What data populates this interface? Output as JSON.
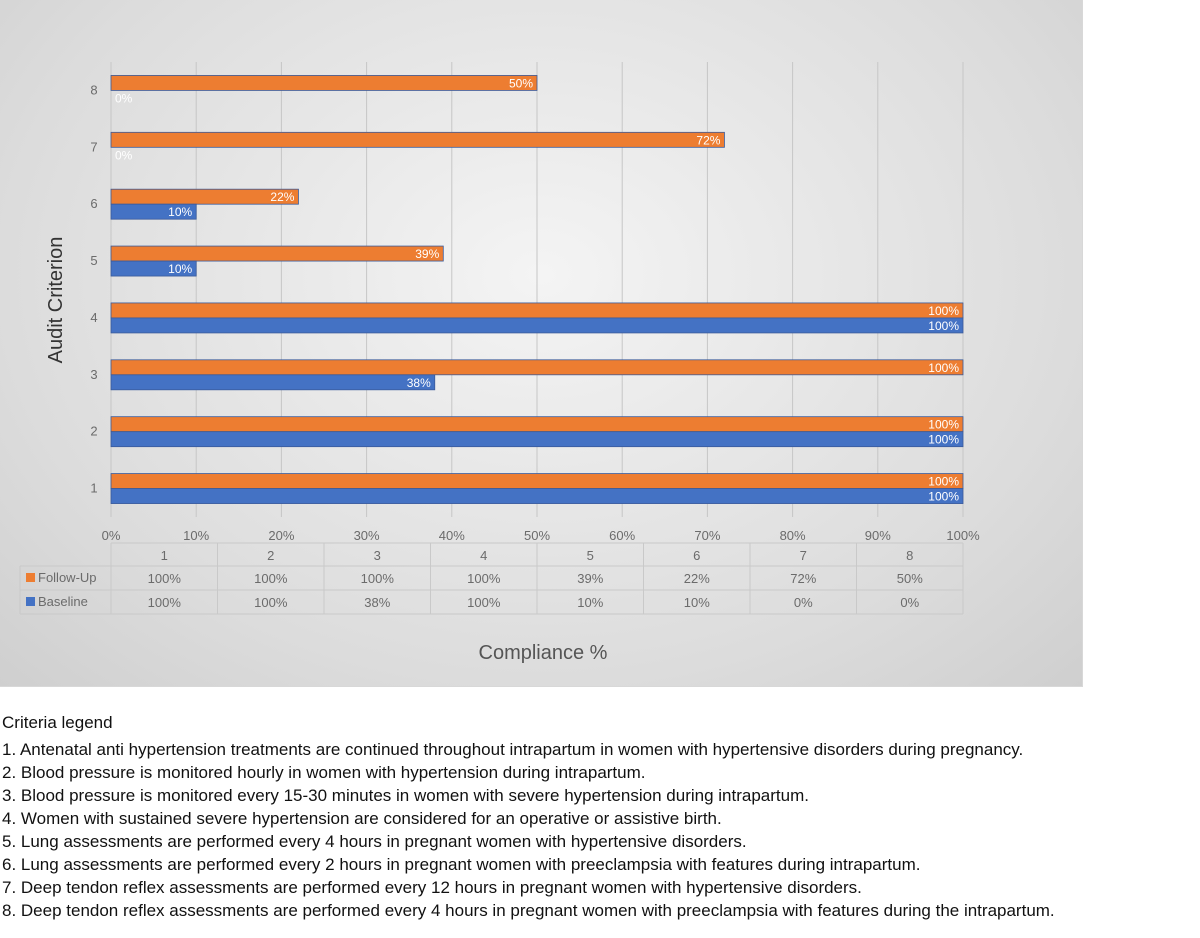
{
  "chart_data": {
    "type": "bar",
    "orientation": "horizontal",
    "categories": [
      "1",
      "2",
      "3",
      "4",
      "5",
      "6",
      "7",
      "8"
    ],
    "series": [
      {
        "name": "Follow-Up",
        "color": "#ed7d31",
        "values": [
          100,
          100,
          100,
          100,
          39,
          22,
          72,
          50
        ],
        "labels": [
          "100%",
          "100%",
          "100%",
          "100%",
          "39%",
          "22%",
          "72%",
          "50%"
        ]
      },
      {
        "name": "Baseline",
        "color": "#4472c4",
        "values": [
          100,
          100,
          38,
          100,
          10,
          10,
          0,
          0
        ],
        "labels": [
          "100%",
          "100%",
          "38%",
          "100%",
          "10%",
          "10%",
          "0%",
          "0%"
        ]
      }
    ],
    "x_ticks": [
      "0%",
      "10%",
      "20%",
      "30%",
      "40%",
      "50%",
      "60%",
      "70%",
      "80%",
      "90%",
      "100%"
    ],
    "xlim": [
      0,
      100
    ],
    "xlabel": "Compliance %",
    "ylabel": "Audit Criterion",
    "grid": true,
    "legend": "data-table"
  },
  "legend": {
    "title": "Criteria legend",
    "items": [
      "1. Antenatal anti hypertension treatments are continued throughout intrapartum in women with hypertensive disorders during pregnancy.",
      "2. Blood pressure is monitored hourly in women with hypertension during intrapartum.",
      "3. Blood pressure is monitored every 15-30 minutes in women with severe hypertension during intrapartum.",
      "4. Women with sustained severe hypertension are considered for an operative or assistive birth.",
      "5. Lung assessments are performed every 4 hours in pregnant women with hypertensive disorders.",
      "6. Lung assessments are performed every 2 hours in pregnant women with preeclampsia with features during intrapartum.",
      "7. Deep tendon reflex assessments are performed every 12 hours in pregnant women with hypertensive disorders.",
      "8. Deep tendon reflex assessments are performed every 4 hours in pregnant women with preeclampsia with features during the intrapartum."
    ]
  }
}
